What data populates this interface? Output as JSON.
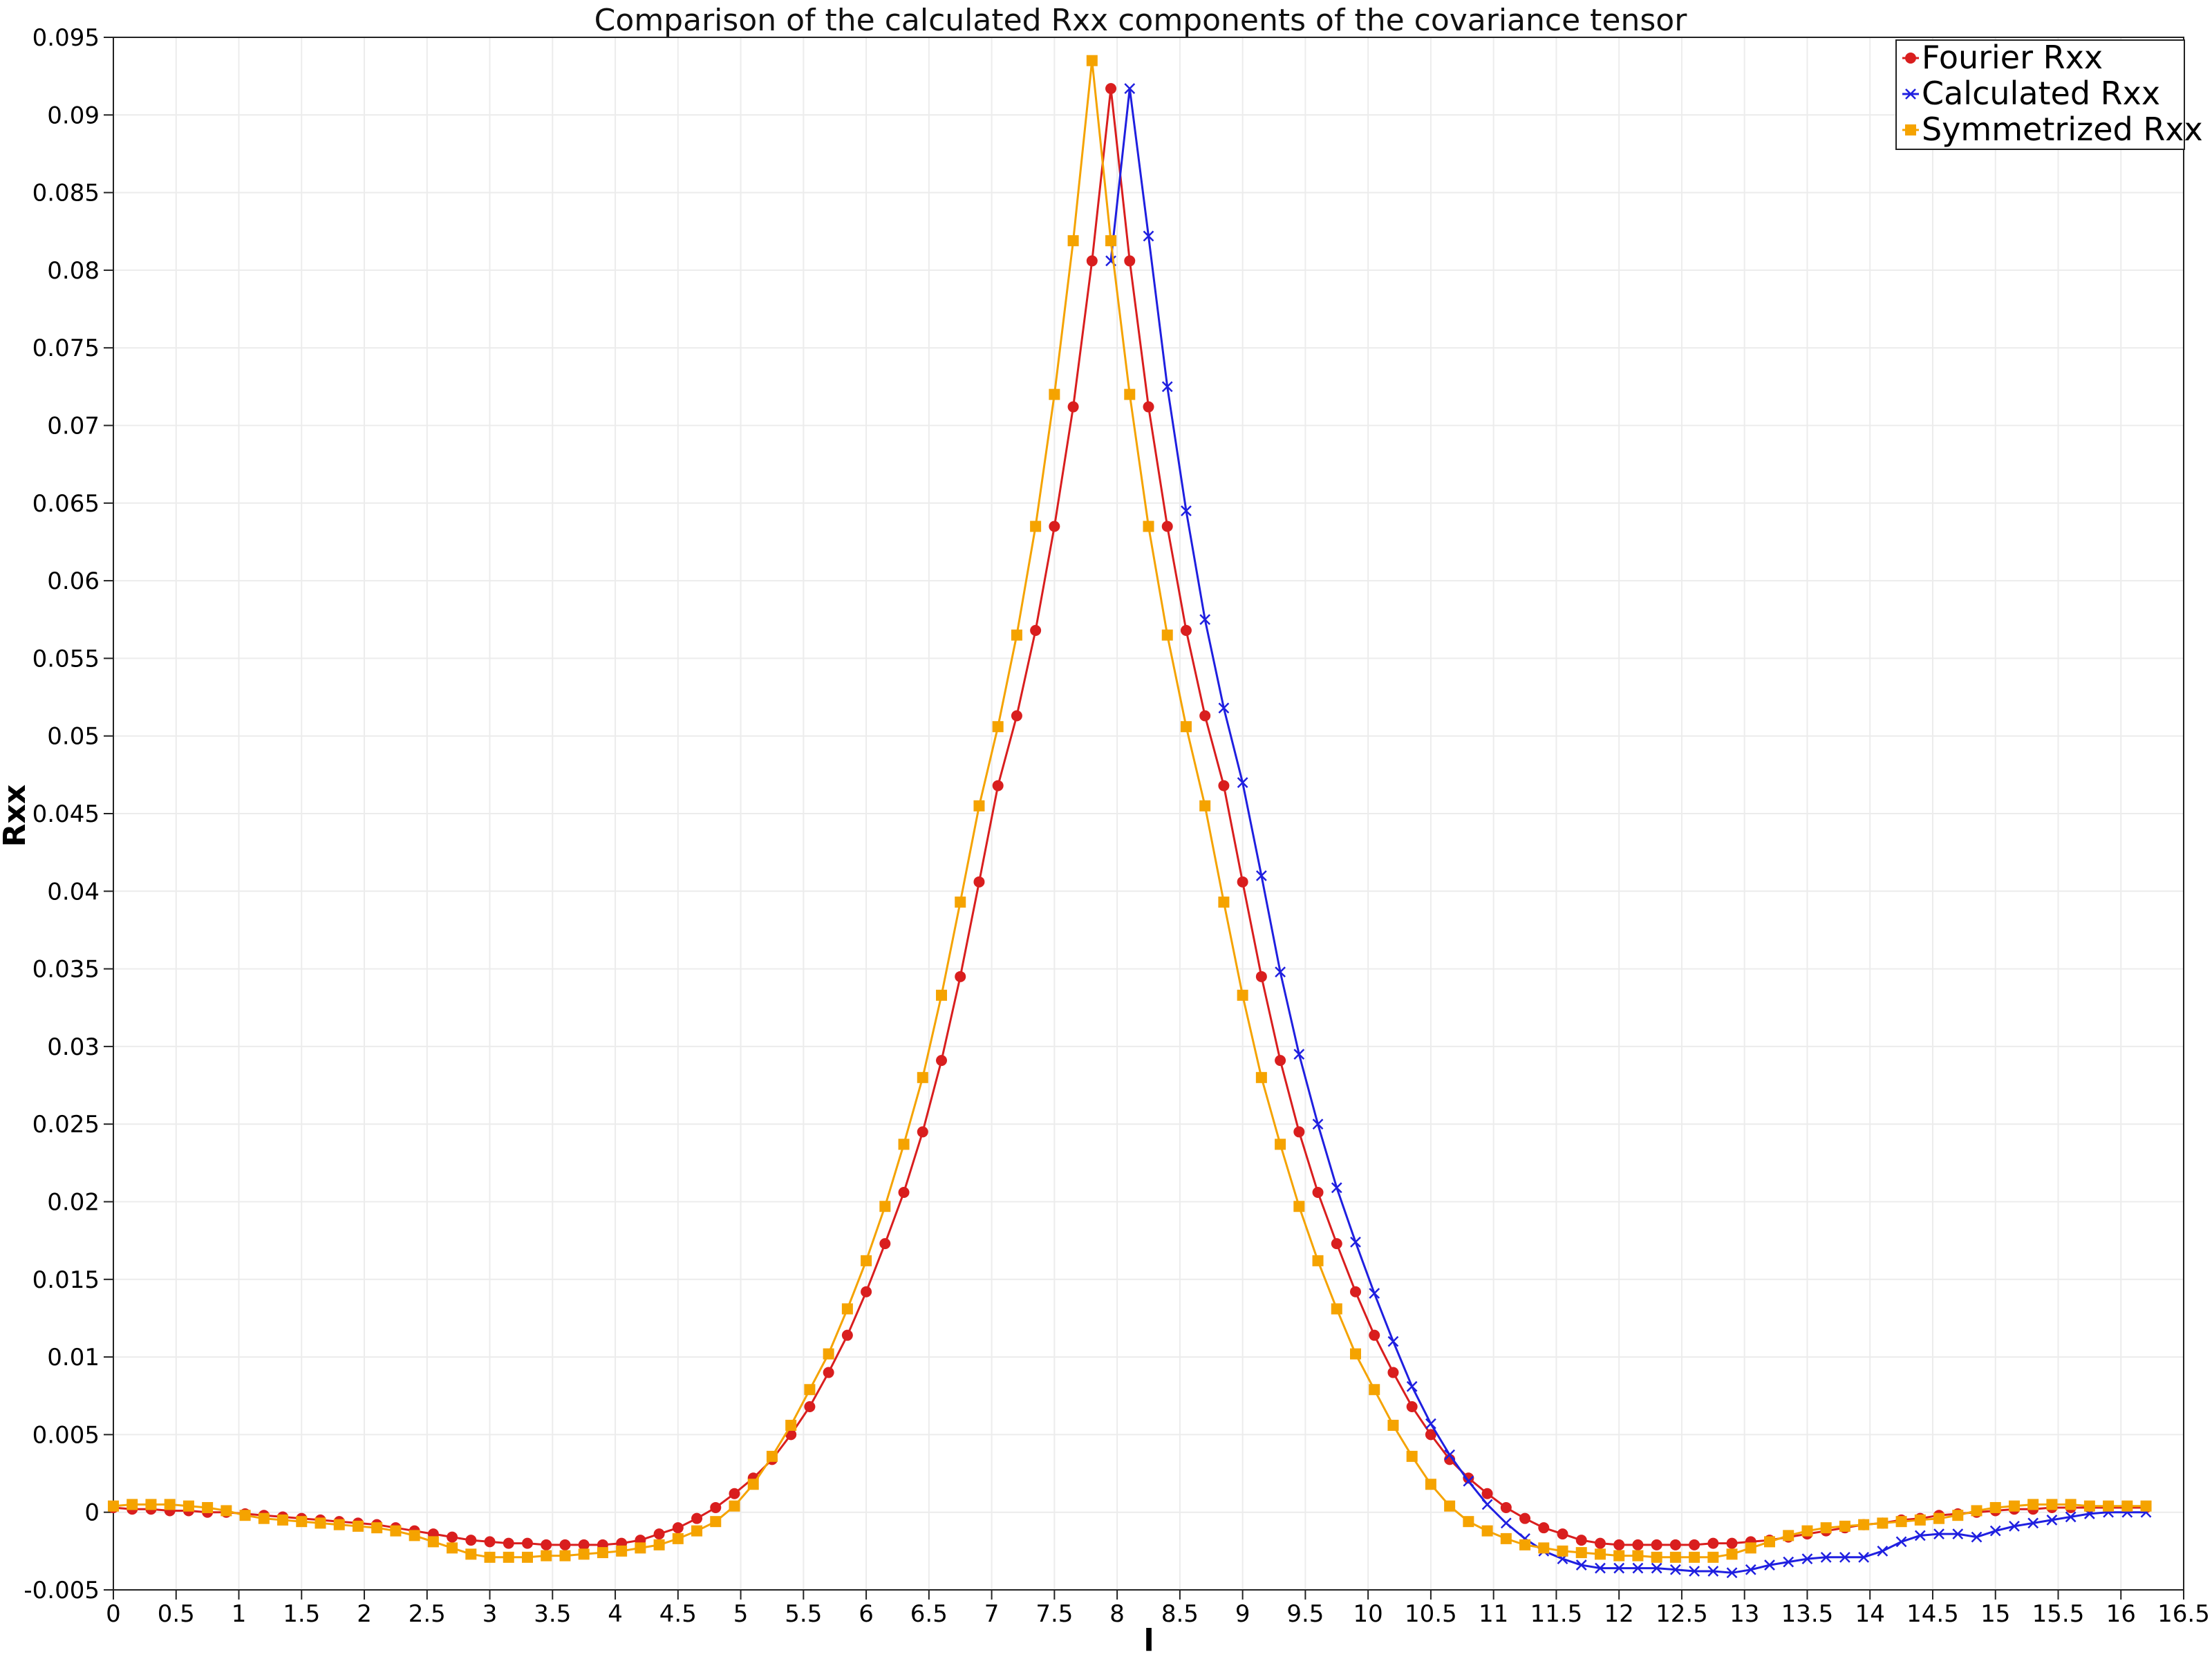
{
  "chart_data": {
    "type": "line",
    "title": "Comparison of the calculated Rxx components of the covariance tensor",
    "xlabel": "l",
    "ylabel": "Rxx",
    "xlim": [
      0,
      16.5
    ],
    "ylim": [
      -0.005,
      0.095
    ],
    "xticks": [
      "0",
      "0.5",
      "1",
      "1.5",
      "2",
      "2.5",
      "3",
      "3.5",
      "4",
      "4.5",
      "5",
      "5.5",
      "6",
      "6.5",
      "7",
      "7.5",
      "8",
      "8.5",
      "9",
      "9.5",
      "10",
      "10.5",
      "11",
      "11.5",
      "12",
      "12.5",
      "13",
      "13.5",
      "14",
      "14.5",
      "15",
      "15.5",
      "16",
      "16.5"
    ],
    "yticks": [
      "-0.005",
      "0",
      "0.005",
      "0.01",
      "0.015",
      "0.02",
      "0.025",
      "0.03",
      "0.035",
      "0.04",
      "0.045",
      "0.05",
      "0.055",
      "0.06",
      "0.065",
      "0.07",
      "0.075",
      "0.08",
      "0.085",
      "0.09",
      "0.095"
    ],
    "grid": true,
    "legend_position": "top-right",
    "series": [
      {
        "name": "Fourier Rxx",
        "color": "#d91e1e",
        "marker": "circle",
        "x": [
          0,
          0.15,
          0.3,
          0.45,
          0.6,
          0.75,
          0.9,
          1.05,
          1.2,
          1.35,
          1.5,
          1.65,
          1.8,
          1.95,
          2.1,
          2.25,
          2.4,
          2.55,
          2.7,
          2.85,
          3.0,
          3.15,
          3.3,
          3.45,
          3.6,
          3.75,
          3.9,
          4.05,
          4.2,
          4.35,
          4.5,
          4.65,
          4.8,
          4.95,
          5.1,
          5.25,
          5.4,
          5.55,
          5.7,
          5.85,
          6.0,
          6.15,
          6.3,
          6.45,
          6.6,
          6.75,
          6.9,
          7.05,
          7.2,
          7.35,
          7.5,
          7.65,
          7.8,
          7.95,
          8.1,
          8.25,
          8.4,
          8.55,
          8.7,
          8.85,
          9.0,
          9.15,
          9.3,
          9.45,
          9.6,
          9.75,
          9.9,
          10.05,
          10.2,
          10.35,
          10.5,
          10.65,
          10.8,
          10.95,
          11.1,
          11.25,
          11.4,
          11.55,
          11.7,
          11.85,
          12.0,
          12.15,
          12.3,
          12.45,
          12.6,
          12.75,
          12.9,
          13.05,
          13.2,
          13.35,
          13.5,
          13.65,
          13.8,
          13.95,
          14.1,
          14.25,
          14.4,
          14.55,
          14.7,
          14.85,
          15.0,
          15.15,
          15.3,
          15.45,
          15.6,
          15.75,
          15.9,
          16.05,
          16.2
        ],
        "y": [
          0.0003,
          0.0002,
          0.0002,
          0.0001,
          0.0001,
          0.0,
          0.0,
          -0.0001,
          -0.0002,
          -0.0003,
          -0.0004,
          -0.0005,
          -0.0006,
          -0.0007,
          -0.0008,
          -0.001,
          -0.0012,
          -0.0014,
          -0.0016,
          -0.0018,
          -0.0019,
          -0.002,
          -0.002,
          -0.0021,
          -0.0021,
          -0.0021,
          -0.0021,
          -0.002,
          -0.0018,
          -0.0014,
          -0.001,
          -0.0004,
          0.0003,
          0.0012,
          0.0022,
          0.0034,
          0.005,
          0.0068,
          0.009,
          0.0114,
          0.0142,
          0.0173,
          0.0206,
          0.0245,
          0.0291,
          0.0345,
          0.0406,
          0.0468,
          0.0513,
          0.0568,
          0.0635,
          0.0712,
          0.0806,
          0.0917,
          0.0806,
          0.0712,
          0.0635,
          0.0568,
          0.0513,
          0.0468,
          0.0406,
          0.0345,
          0.0291,
          0.0245,
          0.0206,
          0.0173,
          0.0142,
          0.0114,
          0.009,
          0.0068,
          0.005,
          0.0034,
          0.0022,
          0.0012,
          0.0003,
          -0.0004,
          -0.001,
          -0.0014,
          -0.0018,
          -0.002,
          -0.0021,
          -0.0021,
          -0.0021,
          -0.0021,
          -0.0021,
          -0.002,
          -0.002,
          -0.0019,
          -0.0018,
          -0.0016,
          -0.0014,
          -0.0012,
          -0.001,
          -0.0008,
          -0.0007,
          -0.0005,
          -0.0004,
          -0.0002,
          -0.0001,
          0.0,
          0.0001,
          0.0002,
          0.0002,
          0.0003,
          0.0003,
          0.0003,
          0.0003,
          0.0003,
          0.0003
        ]
      },
      {
        "name": "Calculated Rxx",
        "color": "#1f1fe0",
        "marker": "x",
        "x": [
          7.95,
          8.1,
          8.25,
          8.4,
          8.55,
          8.7,
          8.85,
          9.0,
          9.15,
          9.3,
          9.45,
          9.6,
          9.75,
          9.9,
          10.05,
          10.2,
          10.35,
          10.5,
          10.65,
          10.8,
          10.95,
          11.1,
          11.25,
          11.4,
          11.55,
          11.7,
          11.85,
          12.0,
          12.15,
          12.3,
          12.45,
          12.6,
          12.75,
          12.9,
          13.05,
          13.2,
          13.35,
          13.5,
          13.65,
          13.8,
          13.95,
          14.1,
          14.25,
          14.4,
          14.55,
          14.7,
          14.85,
          15.0,
          15.15,
          15.3,
          15.45,
          15.6,
          15.75,
          15.9,
          16.05,
          16.2
        ],
        "y": [
          0.0806,
          0.0917,
          0.0822,
          0.0725,
          0.0645,
          0.0575,
          0.0518,
          0.047,
          0.041,
          0.0348,
          0.0295,
          0.025,
          0.0209,
          0.0174,
          0.0141,
          0.011,
          0.0081,
          0.0057,
          0.0037,
          0.002,
          0.0005,
          -0.0007,
          -0.0017,
          -0.0025,
          -0.003,
          -0.0034,
          -0.0036,
          -0.0036,
          -0.0036,
          -0.0036,
          -0.0037,
          -0.0038,
          -0.0038,
          -0.0039,
          -0.0037,
          -0.0034,
          -0.0032,
          -0.003,
          -0.0029,
          -0.0029,
          -0.0029,
          -0.0025,
          -0.0019,
          -0.0015,
          -0.0014,
          -0.0014,
          -0.0016,
          -0.0012,
          -0.0009,
          -0.0007,
          -0.0005,
          -0.0003,
          -0.0001,
          0.0,
          0.0,
          0.0
        ]
      },
      {
        "name": "Symmetrized Rxx",
        "color": "#f5a300",
        "marker": "square",
        "x": [
          0,
          0.15,
          0.3,
          0.45,
          0.6,
          0.75,
          0.9,
          1.05,
          1.2,
          1.35,
          1.5,
          1.65,
          1.8,
          1.95,
          2.1,
          2.25,
          2.4,
          2.55,
          2.7,
          2.85,
          3.0,
          3.15,
          3.3,
          3.45,
          3.6,
          3.75,
          3.9,
          4.05,
          4.2,
          4.35,
          4.5,
          4.65,
          4.8,
          4.95,
          5.1,
          5.25,
          5.4,
          5.55,
          5.7,
          5.85,
          6.0,
          6.15,
          6.3,
          6.45,
          6.6,
          6.75,
          6.9,
          7.05,
          7.2,
          7.35,
          7.5,
          7.65,
          7.8,
          7.95,
          8.1,
          8.25,
          8.4,
          8.55,
          8.7,
          8.85,
          9.0,
          9.15,
          9.3,
          9.45,
          9.6,
          9.75,
          9.9,
          10.05,
          10.2,
          10.35,
          10.5,
          10.65,
          10.8,
          10.95,
          11.1,
          11.25,
          11.4,
          11.55,
          11.7,
          11.85,
          12.0,
          12.15,
          12.3,
          12.45,
          12.6,
          12.75,
          12.9,
          13.05,
          13.2,
          13.35,
          13.5,
          13.65,
          13.8,
          13.95,
          14.1,
          14.25,
          14.4,
          14.55,
          14.7,
          14.85,
          15.0,
          15.15,
          15.3,
          15.45,
          15.6,
          15.75,
          15.9,
          16.05,
          16.2
        ],
        "y": [
          0.0004,
          0.0005,
          0.0005,
          0.0005,
          0.0004,
          0.0003,
          0.0001,
          -0.0002,
          -0.0004,
          -0.0005,
          -0.0006,
          -0.0007,
          -0.0008,
          -0.0009,
          -0.001,
          -0.0012,
          -0.0015,
          -0.0019,
          -0.0023,
          -0.0027,
          -0.0029,
          -0.0029,
          -0.0029,
          -0.0028,
          -0.0028,
          -0.0027,
          -0.0026,
          -0.0025,
          -0.0023,
          -0.0021,
          -0.0017,
          -0.0012,
          -0.0006,
          0.0004,
          0.0018,
          0.0036,
          0.0056,
          0.0079,
          0.0102,
          0.0131,
          0.0162,
          0.0197,
          0.0237,
          0.028,
          0.0333,
          0.0393,
          0.0455,
          0.0506,
          0.0565,
          0.0635,
          0.072,
          0.0819,
          0.0935,
          0.0819,
          0.072,
          0.0635,
          0.0565,
          0.0506,
          0.0455,
          0.0393,
          0.0333,
          0.028,
          0.0237,
          0.0197,
          0.0162,
          0.0131,
          0.0102,
          0.0079,
          0.0056,
          0.0036,
          0.0018,
          0.0004,
          -0.0006,
          -0.0012,
          -0.0017,
          -0.0021,
          -0.0023,
          -0.0025,
          -0.0026,
          -0.0027,
          -0.0028,
          -0.0028,
          -0.0029,
          -0.0029,
          -0.0029,
          -0.0029,
          -0.0027,
          -0.0023,
          -0.0019,
          -0.0015,
          -0.0012,
          -0.001,
          -0.0009,
          -0.0008,
          -0.0007,
          -0.0006,
          -0.0005,
          -0.0004,
          -0.0002,
          0.0001,
          0.0003,
          0.0004,
          0.0005,
          0.0005,
          0.0005,
          0.0004,
          0.0004,
          0.0004,
          0.0004
        ]
      }
    ]
  }
}
